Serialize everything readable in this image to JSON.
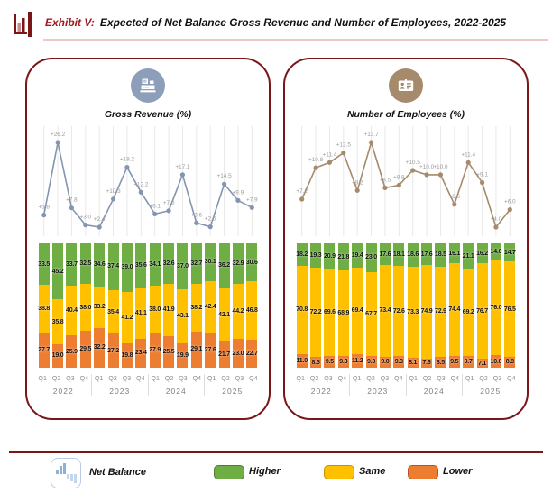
{
  "header": {
    "exhibit_label": "Exhibit V:",
    "title": "Expected of Net Balance Gross Revenue and Number of Employees, 2022-2025"
  },
  "legend": {
    "net_balance_label": "Net Balance",
    "items": [
      {
        "label": "Higher",
        "color": "#6FAE45",
        "border": "#4F7A2F"
      },
      {
        "label": "Same",
        "color": "#FFC000",
        "border": "#C79100"
      },
      {
        "label": "Lower",
        "color": "#ED7D31",
        "border": "#C0501F"
      }
    ]
  },
  "colors": {
    "panel_border": "#7A1518",
    "higher": "#6FAE45",
    "same": "#FFC000",
    "lower": "#ED7D31",
    "left_line": "#8495B0",
    "right_line": "#A58A6B",
    "grid": "#E8E8E8",
    "line_label": "#9A9A9A",
    "axis_text": "#8C8C8C"
  },
  "chart_data": [
    {
      "type": "combo-line-stacked-bar",
      "title": "Gross Revenue (%)",
      "icon": "cash-register-icon",
      "years": [
        "2022",
        "2023",
        "2024",
        "2025"
      ],
      "quarters": [
        "Q1",
        "Q2",
        "Q3",
        "Q4"
      ],
      "stacked_total": 100,
      "grid": "vertical-only",
      "line_series": {
        "name": "Net Balance",
        "label_prefix": "+",
        "values": [
          5.8,
          26.2,
          7.8,
          3.0,
          2.4,
          10.3,
          19.2,
          12.2,
          6.1,
          7.0,
          17.1,
          3.6,
          2.5,
          14.5,
          9.9,
          7.9
        ]
      },
      "bar_series": [
        {
          "name": "Higher",
          "key": "higher",
          "values": [
            33.5,
            45.2,
            33.7,
            32.5,
            34.6,
            37.4,
            39.0,
            35.6,
            34.1,
            32.6,
            37.0,
            32.7,
            30.1,
            36.2,
            32.9,
            30.6
          ]
        },
        {
          "name": "Same",
          "key": "same",
          "values": [
            38.8,
            35.8,
            40.4,
            38.0,
            33.2,
            35.4,
            41.2,
            41.1,
            38.0,
            41.9,
            43.1,
            38.2,
            42.4,
            42.1,
            44.2,
            46.8
          ]
        },
        {
          "name": "Lower",
          "key": "lower",
          "values": [
            27.7,
            19.0,
            25.9,
            29.5,
            32.2,
            27.2,
            19.8,
            23.4,
            27.9,
            25.5,
            19.9,
            29.1,
            27.6,
            21.7,
            23.0,
            22.7
          ]
        }
      ]
    },
    {
      "type": "combo-line-stacked-bar",
      "title": "Number of Employees (%)",
      "icon": "id-badge-icon",
      "years": [
        "2022",
        "2023",
        "2024",
        "2025"
      ],
      "quarters": [
        "Q1",
        "Q2",
        "Q3",
        "Q4"
      ],
      "stacked_total": 100,
      "grid": "vertical-only",
      "line_series": {
        "name": "Net Balance",
        "label_prefix": "+",
        "values": [
          7.2,
          10.8,
          11.4,
          12.5,
          8.2,
          13.7,
          8.5,
          8.8,
          10.5,
          10.0,
          10.0,
          6.6,
          11.4,
          9.1,
          4.0,
          6.0
        ]
      },
      "bar_series": [
        {
          "name": "Higher",
          "key": "higher",
          "values": [
            18.2,
            19.3,
            20.9,
            21.8,
            19.4,
            23.0,
            17.6,
            18.1,
            18.6,
            17.6,
            18.5,
            16.1,
            21.1,
            16.2,
            14.0,
            14.7
          ]
        },
        {
          "name": "Same",
          "key": "same",
          "values": [
            70.8,
            72.2,
            69.6,
            68.9,
            69.4,
            67.7,
            73.4,
            72.6,
            73.3,
            74.9,
            72.9,
            74.4,
            69.2,
            76.7,
            76.0,
            76.5
          ]
        },
        {
          "name": "Lower",
          "key": "lower",
          "values": [
            11.0,
            8.5,
            9.5,
            9.3,
            11.2,
            9.3,
            9.0,
            9.3,
            8.1,
            7.6,
            8.5,
            9.5,
            9.7,
            7.1,
            10.0,
            8.8
          ]
        }
      ]
    }
  ]
}
